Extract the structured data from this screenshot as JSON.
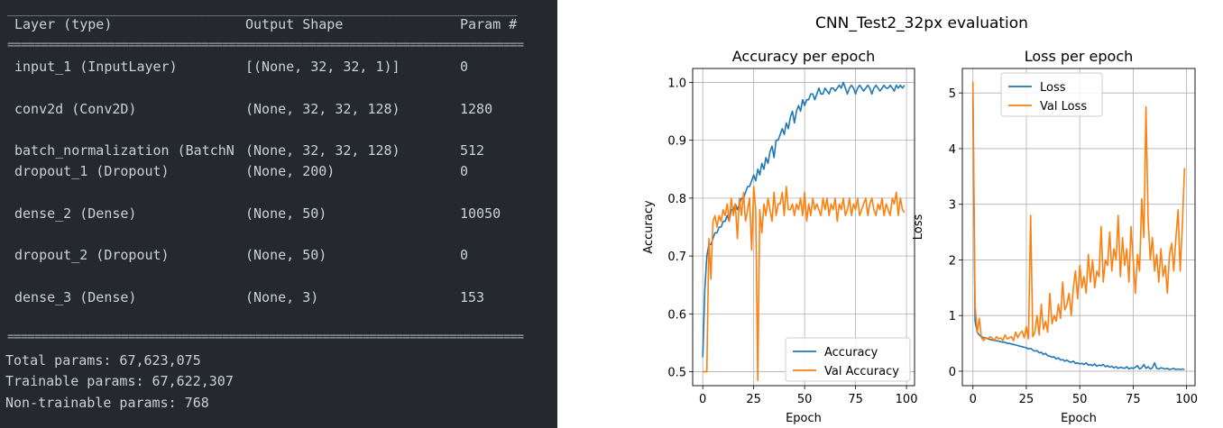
{
  "summary": {
    "headers": [
      "Layer (type)",
      "Output Shape",
      "Param #"
    ],
    "rows": [
      [
        "input_1 (InputLayer)",
        "[(None, 32, 32, 1)]",
        "0"
      ],
      [
        "conv2d (Conv2D)",
        "(None, 32, 32, 128)",
        "1280"
      ],
      [
        "batch_normalization (BatchN",
        "(None, 32, 32, 128)",
        "512"
      ],
      [
        "dropout_1 (Dropout)",
        "(None, 200)",
        "0"
      ],
      [
        "dense_2 (Dense)",
        "(None, 50)",
        "10050"
      ],
      [
        "dropout_2 (Dropout)",
        "(None, 50)",
        "0"
      ],
      [
        "dense_3 (Dense)",
        "(None, 3)",
        "153"
      ]
    ],
    "totals": [
      "Total params: 67,623,075",
      "Trainable params: 67,622,307",
      "Non-trainable params: 768"
    ],
    "rule_thin": "____________________________________________________________________________",
    "rule_thick": "============================================================================="
  },
  "figure_title": "CNN_Test2_32px evaluation",
  "colors": {
    "blue": "#1f77b4",
    "orange": "#ff7f0e",
    "grid": "#b0b0b0",
    "panel_bg": "#25292e"
  },
  "chart_data": [
    {
      "type": "line",
      "title": "Accuracy per epoch",
      "xlabel": "Epoch",
      "ylabel": "Accuracy",
      "xlim": [
        -4.95,
        103.95
      ],
      "ylim": [
        0.476,
        1.024
      ],
      "xticks": [
        0,
        25,
        50,
        75,
        100
      ],
      "yticks": [
        0.5,
        0.6,
        0.7,
        0.8,
        0.9,
        1.0
      ],
      "ytick_labels": [
        "0.5",
        "0.6",
        "0.7",
        "0.8",
        "0.9",
        "1.0"
      ],
      "grid": true,
      "legend_position": "lower right",
      "series": [
        {
          "name": "Accuracy",
          "color": "#1f77b4",
          "x": [
            0,
            1,
            2,
            3,
            4,
            5,
            6,
            7,
            8,
            9,
            10,
            11,
            12,
            13,
            14,
            15,
            16,
            17,
            18,
            19,
            20,
            21,
            22,
            23,
            24,
            25,
            26,
            27,
            28,
            29,
            30,
            31,
            32,
            33,
            34,
            35,
            36,
            37,
            38,
            39,
            40,
            41,
            42,
            43,
            44,
            45,
            46,
            47,
            48,
            49,
            50,
            51,
            52,
            53,
            54,
            55,
            56,
            57,
            58,
            59,
            60,
            61,
            62,
            63,
            64,
            65,
            66,
            67,
            68,
            69,
            70,
            71,
            72,
            73,
            74,
            75,
            76,
            77,
            78,
            79,
            80,
            81,
            82,
            83,
            84,
            85,
            86,
            87,
            88,
            89,
            90,
            91,
            92,
            93,
            94,
            95,
            96,
            97,
            98,
            99
          ],
          "values": [
            0.525,
            0.64,
            0.7,
            0.72,
            0.72,
            0.73,
            0.74,
            0.74,
            0.75,
            0.75,
            0.76,
            0.76,
            0.77,
            0.76,
            0.78,
            0.78,
            0.79,
            0.78,
            0.79,
            0.8,
            0.8,
            0.81,
            0.82,
            0.82,
            0.83,
            0.84,
            0.83,
            0.85,
            0.84,
            0.86,
            0.85,
            0.87,
            0.86,
            0.88,
            0.89,
            0.87,
            0.9,
            0.9,
            0.91,
            0.92,
            0.91,
            0.93,
            0.92,
            0.94,
            0.95,
            0.93,
            0.95,
            0.96,
            0.95,
            0.97,
            0.96,
            0.97,
            0.97,
            0.98,
            0.98,
            0.97,
            0.98,
            0.99,
            0.98,
            0.98,
            0.99,
            0.985,
            0.98,
            0.99,
            0.99,
            0.985,
            0.99,
            0.995,
            0.99,
            1.0,
            0.99,
            0.98,
            0.99,
            0.995,
            0.99,
            0.98,
            0.99,
            0.995,
            0.99,
            0.985,
            0.99,
            0.995,
            0.99,
            0.98,
            0.99,
            0.995,
            0.99,
            0.985,
            0.99,
            0.995,
            0.99,
            0.99,
            0.995,
            0.99,
            0.985,
            0.995,
            0.99,
            0.995,
            0.99,
            0.995
          ]
        },
        {
          "name": "Val Accuracy",
          "color": "#ff7f0e",
          "x": [
            0,
            1,
            2,
            3,
            4,
            5,
            6,
            7,
            8,
            9,
            10,
            11,
            12,
            13,
            14,
            15,
            16,
            17,
            18,
            19,
            20,
            21,
            22,
            23,
            24,
            25,
            26,
            27,
            28,
            29,
            30,
            31,
            32,
            33,
            34,
            35,
            36,
            37,
            38,
            39,
            40,
            41,
            42,
            43,
            44,
            45,
            46,
            47,
            48,
            49,
            50,
            51,
            52,
            53,
            54,
            55,
            56,
            57,
            58,
            59,
            60,
            61,
            62,
            63,
            64,
            65,
            66,
            67,
            68,
            69,
            70,
            71,
            72,
            73,
            74,
            75,
            76,
            77,
            78,
            79,
            80,
            81,
            82,
            83,
            84,
            85,
            86,
            87,
            88,
            89,
            90,
            91,
            92,
            93,
            94,
            95,
            96,
            97,
            98,
            99
          ],
          "values": [
            0.5,
            0.5,
            0.5,
            0.73,
            0.66,
            0.76,
            0.77,
            0.75,
            0.77,
            0.76,
            0.78,
            0.77,
            0.79,
            0.76,
            0.8,
            0.77,
            0.79,
            0.73,
            0.8,
            0.77,
            0.81,
            0.76,
            0.78,
            0.8,
            0.71,
            0.82,
            0.78,
            0.485,
            0.78,
            0.74,
            0.79,
            0.77,
            0.8,
            0.78,
            0.76,
            0.81,
            0.77,
            0.79,
            0.79,
            0.81,
            0.77,
            0.82,
            0.78,
            0.78,
            0.79,
            0.77,
            0.79,
            0.78,
            0.8,
            0.77,
            0.81,
            0.76,
            0.79,
            0.77,
            0.8,
            0.78,
            0.79,
            0.78,
            0.77,
            0.8,
            0.78,
            0.8,
            0.77,
            0.79,
            0.78,
            0.8,
            0.76,
            0.79,
            0.78,
            0.8,
            0.77,
            0.78,
            0.8,
            0.77,
            0.79,
            0.78,
            0.8,
            0.77,
            0.78,
            0.79,
            0.8,
            0.77,
            0.79,
            0.8,
            0.78,
            0.77,
            0.79,
            0.78,
            0.8,
            0.77,
            0.79,
            0.78,
            0.77,
            0.8,
            0.79,
            0.81,
            0.77,
            0.8,
            0.78,
            0.775
          ]
        }
      ]
    },
    {
      "type": "line",
      "title": "Loss per epoch",
      "xlabel": "Epoch",
      "ylabel": "Loss",
      "xlim": [
        -4.95,
        103.95
      ],
      "ylim": [
        -0.26,
        5.44
      ],
      "xticks": [
        0,
        25,
        50,
        75,
        100
      ],
      "yticks": [
        0,
        1,
        2,
        3,
        4,
        5
      ],
      "ytick_labels": [
        "0",
        "1",
        "2",
        "3",
        "4",
        "5"
      ],
      "grid": true,
      "legend_position": "upper center",
      "series": [
        {
          "name": "Loss",
          "color": "#1f77b4",
          "x": [
            0,
            1,
            2,
            3,
            4,
            5,
            6,
            7,
            8,
            9,
            10,
            11,
            12,
            13,
            14,
            15,
            16,
            17,
            18,
            19,
            20,
            21,
            22,
            23,
            24,
            25,
            26,
            27,
            28,
            29,
            30,
            31,
            32,
            33,
            34,
            35,
            36,
            37,
            38,
            39,
            40,
            41,
            42,
            43,
            44,
            45,
            46,
            47,
            48,
            49,
            50,
            51,
            52,
            53,
            54,
            55,
            56,
            57,
            58,
            59,
            60,
            61,
            62,
            63,
            64,
            65,
            66,
            67,
            68,
            69,
            70,
            71,
            72,
            73,
            74,
            75,
            76,
            77,
            78,
            79,
            80,
            81,
            82,
            83,
            84,
            85,
            86,
            87,
            88,
            89,
            90,
            91,
            92,
            93,
            94,
            95,
            96,
            97,
            98,
            99
          ],
          "values": [
            4.9,
            0.9,
            0.7,
            0.65,
            0.62,
            0.6,
            0.6,
            0.58,
            0.57,
            0.56,
            0.55,
            0.55,
            0.54,
            0.53,
            0.52,
            0.52,
            0.5,
            0.5,
            0.49,
            0.48,
            0.47,
            0.46,
            0.45,
            0.44,
            0.43,
            0.42,
            0.4,
            0.41,
            0.38,
            0.36,
            0.37,
            0.33,
            0.34,
            0.3,
            0.32,
            0.28,
            0.27,
            0.25,
            0.26,
            0.22,
            0.24,
            0.2,
            0.21,
            0.18,
            0.2,
            0.17,
            0.16,
            0.18,
            0.14,
            0.15,
            0.13,
            0.14,
            0.12,
            0.15,
            0.11,
            0.12,
            0.1,
            0.13,
            0.09,
            0.11,
            0.1,
            0.12,
            0.08,
            0.1,
            0.07,
            0.09,
            0.06,
            0.08,
            0.05,
            0.07,
            0.06,
            0.05,
            0.08,
            0.04,
            0.06,
            0.05,
            0.07,
            0.1,
            0.04,
            0.06,
            0.12,
            0.05,
            0.08,
            0.04,
            0.06,
            0.15,
            0.05,
            0.04,
            0.06,
            0.05,
            0.04,
            0.05,
            0.03,
            0.04,
            0.05,
            0.03,
            0.04,
            0.03,
            0.04,
            0.03
          ]
        },
        {
          "name": "Val Loss",
          "color": "#ff7f0e",
          "x": [
            0,
            1,
            2,
            3,
            4,
            5,
            6,
            7,
            8,
            9,
            10,
            11,
            12,
            13,
            14,
            15,
            16,
            17,
            18,
            19,
            20,
            21,
            22,
            23,
            24,
            25,
            26,
            27,
            28,
            29,
            30,
            31,
            32,
            33,
            34,
            35,
            36,
            37,
            38,
            39,
            40,
            41,
            42,
            43,
            44,
            45,
            46,
            47,
            48,
            49,
            50,
            51,
            52,
            53,
            54,
            55,
            56,
            57,
            58,
            59,
            60,
            61,
            62,
            63,
            64,
            65,
            66,
            67,
            68,
            69,
            70,
            71,
            72,
            73,
            74,
            75,
            76,
            77,
            78,
            79,
            80,
            81,
            82,
            83,
            84,
            85,
            86,
            87,
            88,
            89,
            90,
            91,
            92,
            93,
            94,
            95,
            96,
            97,
            98,
            99
          ],
          "values": [
            5.2,
            1.2,
            0.7,
            0.95,
            0.6,
            0.55,
            0.6,
            0.58,
            0.62,
            0.6,
            0.55,
            0.62,
            0.58,
            0.6,
            0.55,
            0.65,
            0.58,
            0.6,
            0.62,
            0.55,
            0.7,
            0.6,
            0.68,
            0.72,
            0.6,
            0.8,
            0.58,
            2.8,
            0.62,
            0.7,
            1.0,
            0.65,
            1.2,
            0.75,
            0.9,
            0.7,
            1.4,
            0.85,
            1.0,
            0.9,
            1.2,
            0.95,
            1.6,
            1.1,
            1.2,
            1.4,
            1.0,
            1.5,
            1.8,
            1.3,
            1.9,
            1.5,
            1.7,
            1.4,
            2.1,
            1.6,
            2.0,
            1.5,
            1.8,
            1.7,
            2.6,
            1.6,
            2.0,
            1.9,
            2.5,
            1.8,
            2.2,
            2.0,
            2.8,
            1.7,
            2.4,
            1.9,
            2.2,
            1.6,
            2.6,
            2.0,
            1.4,
            2.1,
            1.8,
            3.1,
            2.4,
            4.75,
            2.7,
            2.0,
            2.4,
            1.8,
            2.1,
            1.6,
            2.2,
            1.7,
            1.9,
            1.4,
            2.1,
            2.3,
            1.8,
            2.4,
            2.9,
            1.8,
            2.6,
            3.65
          ]
        }
      ]
    }
  ]
}
